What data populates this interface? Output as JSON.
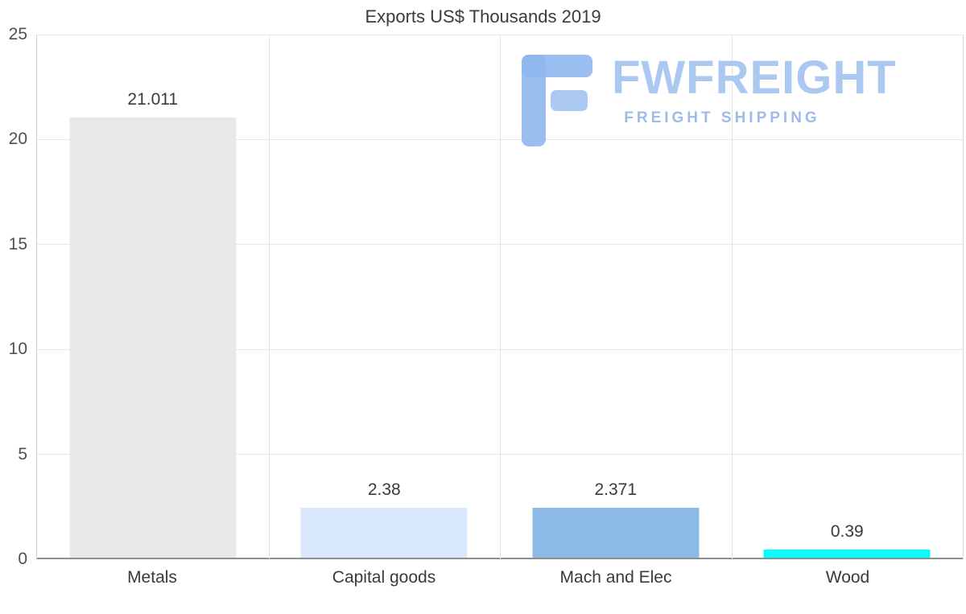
{
  "title": "Exports US$ Thousands 2019",
  "watermark": {
    "brand": "FWFREIGHT",
    "tagline": "FREIGHT SHIPPING",
    "brand_color": "#abc8f1",
    "icon_color": "#8fb7ee"
  },
  "chart_data": {
    "type": "bar",
    "title": "Exports US$ Thousands 2019",
    "categories": [
      "Metals",
      "Capital goods",
      "Mach and Elec",
      "Wood"
    ],
    "values": [
      21.011,
      2.38,
      2.371,
      0.39
    ],
    "value_labels": [
      "21.011",
      "2.38",
      "2.371",
      "0.39"
    ],
    "bar_colors": [
      "#e8e8e8",
      "#d9e8fb",
      "#8cbbe8",
      "#00ffff"
    ],
    "xlabel": "",
    "ylabel": "",
    "ylim": [
      0,
      25
    ],
    "yticks": [
      0,
      5,
      10,
      15,
      20,
      25
    ],
    "grid": true,
    "legend": false
  }
}
